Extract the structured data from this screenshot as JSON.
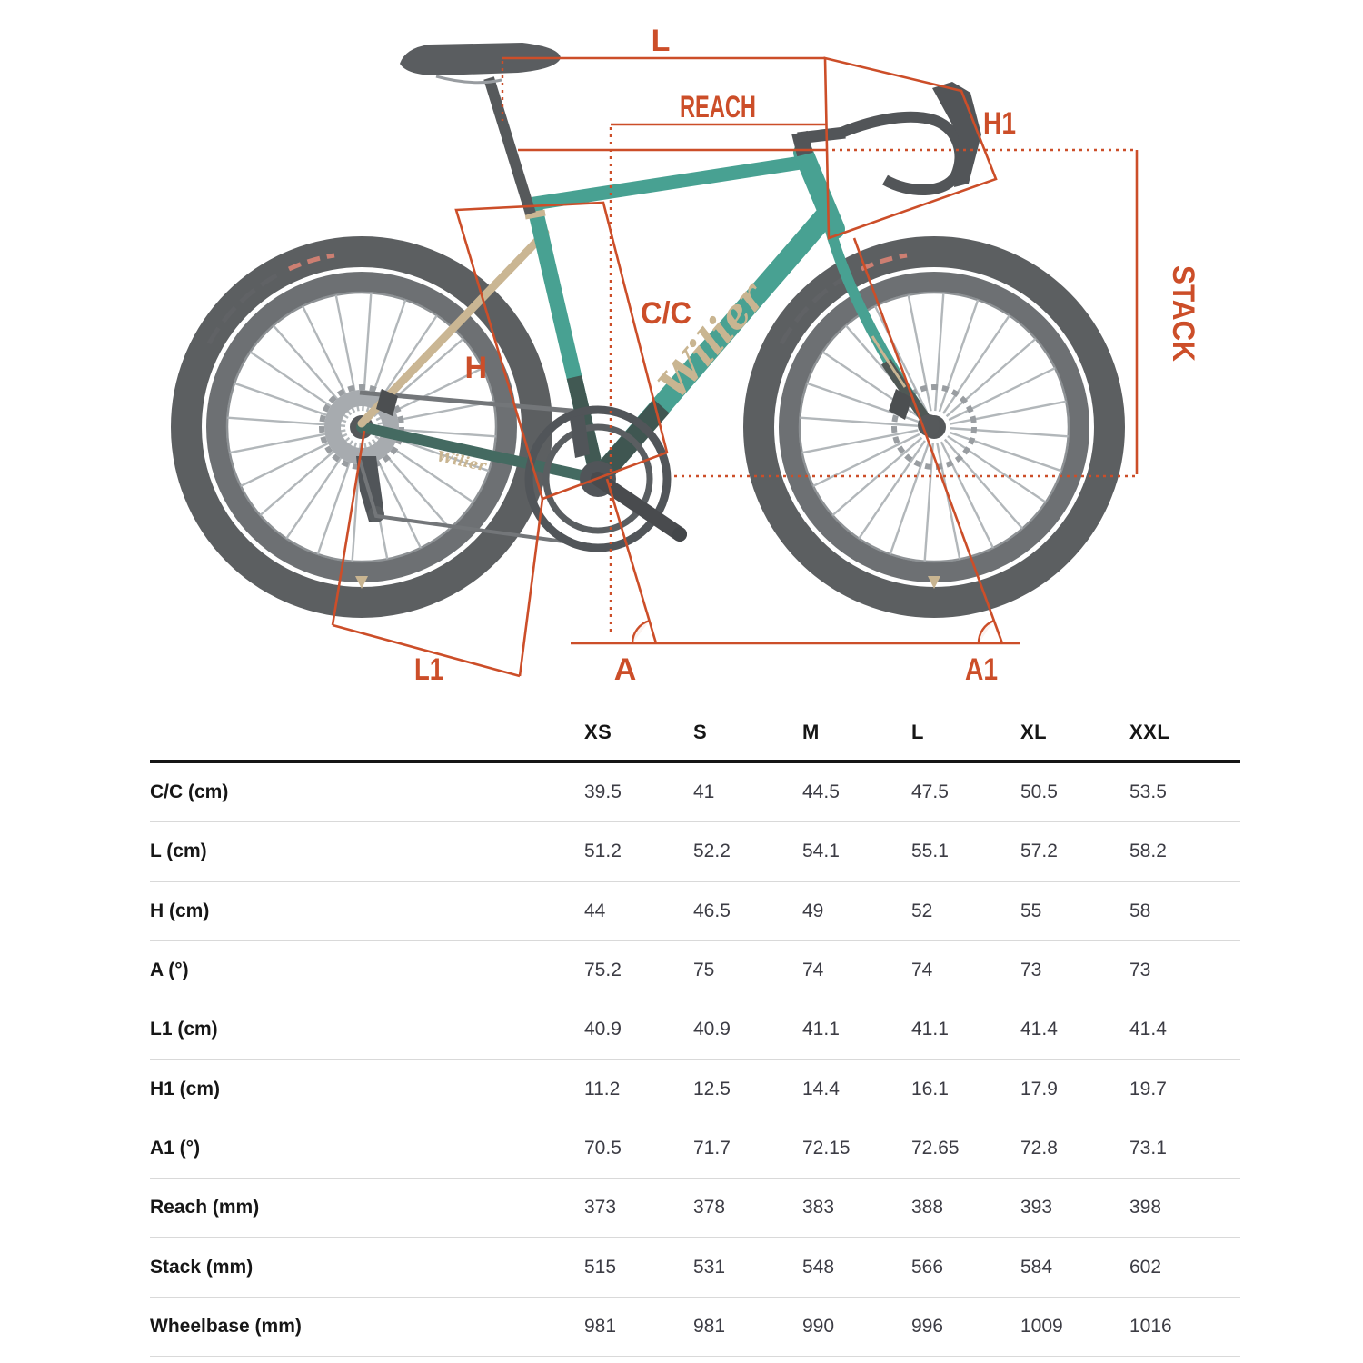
{
  "diagram": {
    "brand": "Wilier",
    "annotation_color": "#cc4e29",
    "frame_color": "#2f9583",
    "accent_gold": "#c2ab82",
    "labels": {
      "l": "L",
      "reach": "REACH",
      "h1": "H1",
      "cc": "C/C",
      "h": "H",
      "stack": "STACK",
      "l1": "L1",
      "a": "A",
      "a1": "A1"
    }
  },
  "table": {
    "columns": [
      "XS",
      "S",
      "M",
      "L",
      "XL",
      "XXL"
    ],
    "rows": [
      {
        "label": "C/C (cm)",
        "values": [
          "39.5",
          "41",
          "44.5",
          "47.5",
          "50.5",
          "53.5"
        ]
      },
      {
        "label": "L (cm)",
        "values": [
          "51.2",
          "52.2",
          "54.1",
          "55.1",
          "57.2",
          "58.2"
        ]
      },
      {
        "label": "H (cm)",
        "values": [
          "44",
          "46.5",
          "49",
          "52",
          "55",
          "58"
        ]
      },
      {
        "label": "A (°)",
        "values": [
          "75.2",
          "75",
          "74",
          "74",
          "73",
          "73"
        ]
      },
      {
        "label": "L1 (cm)",
        "values": [
          "40.9",
          "40.9",
          "41.1",
          "41.1",
          "41.4",
          "41.4"
        ]
      },
      {
        "label": "H1 (cm)",
        "values": [
          "11.2",
          "12.5",
          "14.4",
          "16.1",
          "17.9",
          "19.7"
        ]
      },
      {
        "label": "A1 (°)",
        "values": [
          "70.5",
          "71.7",
          "72.15",
          "72.65",
          "72.8",
          "73.1"
        ]
      },
      {
        "label": "Reach (mm)",
        "values": [
          "373",
          "378",
          "383",
          "388",
          "393",
          "398"
        ]
      },
      {
        "label": "Stack (mm)",
        "values": [
          "515",
          "531",
          "548",
          "566",
          "584",
          "602"
        ]
      },
      {
        "label": "Wheelbase (mm)",
        "values": [
          "981",
          "981",
          "990",
          "996",
          "1009",
          "1016"
        ]
      }
    ]
  }
}
